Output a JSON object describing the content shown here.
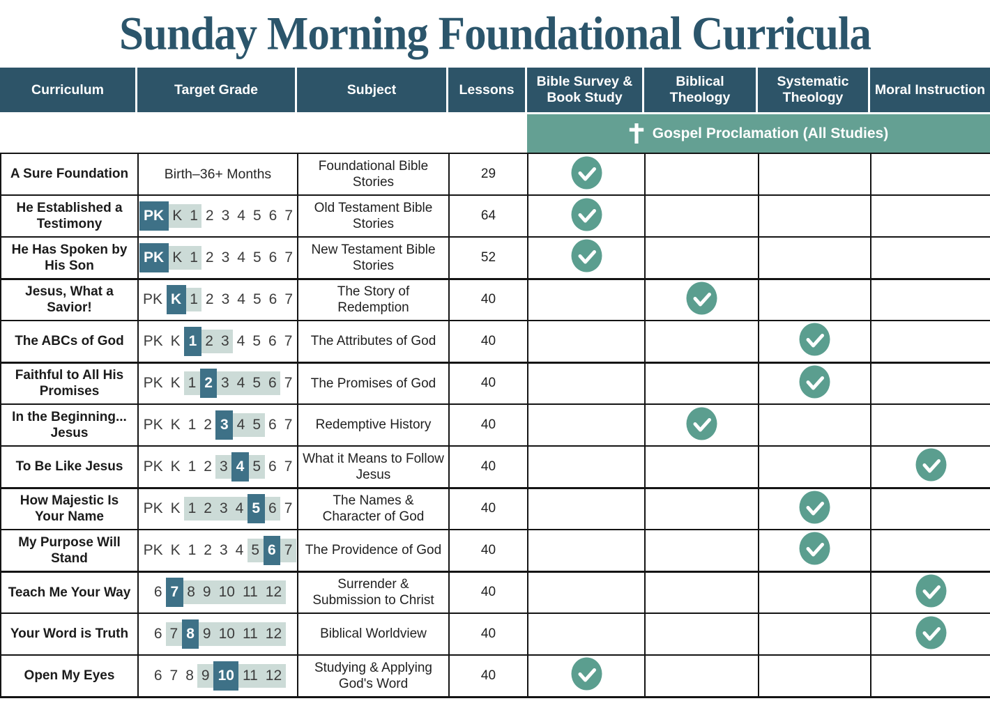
{
  "title": "Sunday Morning Foundational Curricula",
  "colors": {
    "header_blue": "#2d5468",
    "grade_highlight_blue": "#3e7187",
    "grade_range_band": "#ccdbd7",
    "banner_teal": "#64a093",
    "check_teal": "#5b9e8f",
    "title_color": "#2b556b"
  },
  "header": {
    "columns": [
      "Curriculum",
      "Target Grade",
      "Subject",
      "Lessons",
      "Bible Survey & Book Study",
      "Biblical Theology",
      "Systematic Theology",
      "Moral Instruction"
    ]
  },
  "banner": {
    "icon": "cross-icon",
    "label": "Gospel Proclamation (All Studies)"
  },
  "check_columns": [
    "bible_survey",
    "biblical_theology",
    "systematic_theology",
    "moral_instruction"
  ],
  "rows": [
    {
      "curriculum": "A Sure Foundation",
      "grade": {
        "text": "Birth–36+ Months"
      },
      "subject": "Foundational Bible Stories",
      "lessons": "29",
      "check": "bible_survey"
    },
    {
      "curriculum": "He Established a Testimony",
      "grade": {
        "tokens": [
          [
            "PK",
            "main"
          ],
          [
            "K",
            "range"
          ],
          [
            "1",
            "range"
          ],
          [
            "2",
            "plain"
          ],
          [
            "3",
            "plain"
          ],
          [
            "4",
            "plain"
          ],
          [
            "5",
            "plain"
          ],
          [
            "6",
            "plain"
          ],
          [
            "7",
            "plain"
          ]
        ]
      },
      "subject": "Old Testament Bible Stories",
      "lessons": "64",
      "check": "bible_survey"
    },
    {
      "curriculum": "He Has Spoken by His Son",
      "grade": {
        "tokens": [
          [
            "PK",
            "main"
          ],
          [
            "K",
            "range"
          ],
          [
            "1",
            "range"
          ],
          [
            "2",
            "plain"
          ],
          [
            "3",
            "plain"
          ],
          [
            "4",
            "plain"
          ],
          [
            "5",
            "plain"
          ],
          [
            "6",
            "plain"
          ],
          [
            "7",
            "plain"
          ]
        ]
      },
      "subject": "New Testament Bible Stories",
      "lessons": "52",
      "check": "bible_survey"
    },
    {
      "curriculum": "Jesus, What a Savior!",
      "grade": {
        "tokens": [
          [
            "PK",
            "plain"
          ],
          [
            "K",
            "main"
          ],
          [
            "1",
            "range"
          ],
          [
            "2",
            "plain"
          ],
          [
            "3",
            "plain"
          ],
          [
            "4",
            "plain"
          ],
          [
            "5",
            "plain"
          ],
          [
            "6",
            "plain"
          ],
          [
            "7",
            "plain"
          ]
        ]
      },
      "subject": "The Story of Redemption",
      "lessons": "40",
      "check": "biblical_theology"
    },
    {
      "curriculum": "The ABCs of God",
      "grade": {
        "tokens": [
          [
            "PK",
            "plain"
          ],
          [
            "K",
            "plain"
          ],
          [
            "1",
            "main"
          ],
          [
            "2",
            "range"
          ],
          [
            "3",
            "range"
          ],
          [
            "4",
            "plain"
          ],
          [
            "5",
            "plain"
          ],
          [
            "6",
            "plain"
          ],
          [
            "7",
            "plain"
          ]
        ]
      },
      "subject": "The Attributes of God",
      "lessons": "40",
      "check": "systematic_theology"
    },
    {
      "curriculum": "Faithful to All His Promises",
      "grade": {
        "tokens": [
          [
            "PK",
            "plain"
          ],
          [
            "K",
            "plain"
          ],
          [
            "1",
            "range"
          ],
          [
            "2",
            "main"
          ],
          [
            "3",
            "range"
          ],
          [
            "4",
            "range"
          ],
          [
            "5",
            "range"
          ],
          [
            "6",
            "range"
          ],
          [
            "7",
            "plain"
          ]
        ]
      },
      "subject": "The Promises of God",
      "lessons": "40",
      "check": "systematic_theology"
    },
    {
      "curriculum": "In the Beginning... Jesus",
      "grade": {
        "tokens": [
          [
            "PK",
            "plain"
          ],
          [
            "K",
            "plain"
          ],
          [
            "1",
            "plain"
          ],
          [
            "2",
            "plain"
          ],
          [
            "3",
            "main"
          ],
          [
            "4",
            "range"
          ],
          [
            "5",
            "range"
          ],
          [
            "6",
            "plain"
          ],
          [
            "7",
            "plain"
          ]
        ]
      },
      "subject": "Redemptive History",
      "lessons": "40",
      "check": "biblical_theology"
    },
    {
      "curriculum": "To Be Like Jesus",
      "grade": {
        "tokens": [
          [
            "PK",
            "plain"
          ],
          [
            "K",
            "plain"
          ],
          [
            "1",
            "plain"
          ],
          [
            "2",
            "plain"
          ],
          [
            "3",
            "range"
          ],
          [
            "4",
            "main"
          ],
          [
            "5",
            "range"
          ],
          [
            "6",
            "plain"
          ],
          [
            "7",
            "plain"
          ]
        ]
      },
      "subject": "What it Means to Follow Jesus",
      "lessons": "40",
      "check": "moral_instruction"
    },
    {
      "curriculum": "How Majestic Is Your Name",
      "grade": {
        "tokens": [
          [
            "PK",
            "plain"
          ],
          [
            "K",
            "plain"
          ],
          [
            "1",
            "range"
          ],
          [
            "2",
            "range"
          ],
          [
            "3",
            "range"
          ],
          [
            "4",
            "range"
          ],
          [
            "5",
            "main"
          ],
          [
            "6",
            "range"
          ],
          [
            "7",
            "plain"
          ]
        ]
      },
      "subject": "The Names & Character of God",
      "lessons": "40",
      "check": "systematic_theology"
    },
    {
      "curriculum": "My Purpose Will Stand",
      "grade": {
        "tokens": [
          [
            "PK",
            "plain"
          ],
          [
            "K",
            "plain"
          ],
          [
            "1",
            "plain"
          ],
          [
            "2",
            "plain"
          ],
          [
            "3",
            "plain"
          ],
          [
            "4",
            "plain"
          ],
          [
            "5",
            "range"
          ],
          [
            "6",
            "main"
          ],
          [
            "7",
            "range"
          ]
        ]
      },
      "subject": "The Providence of God",
      "lessons": "40",
      "check": "systematic_theology"
    },
    {
      "curriculum": "Teach Me Your Way",
      "grade": {
        "tokens": [
          [
            "6",
            "plain"
          ],
          [
            "7",
            "main"
          ],
          [
            "8",
            "range"
          ],
          [
            "9",
            "range"
          ],
          [
            "10",
            "range"
          ],
          [
            "11",
            "range"
          ],
          [
            "12",
            "range"
          ]
        ]
      },
      "subject": "Surrender & Submission to Christ",
      "lessons": "40",
      "check": "moral_instruction"
    },
    {
      "curriculum": "Your Word is Truth",
      "grade": {
        "tokens": [
          [
            "6",
            "plain"
          ],
          [
            "7",
            "range"
          ],
          [
            "8",
            "main"
          ],
          [
            "9",
            "range"
          ],
          [
            "10",
            "range"
          ],
          [
            "11",
            "range"
          ],
          [
            "12",
            "range"
          ]
        ]
      },
      "subject": "Biblical Worldview",
      "lessons": "40",
      "check": "moral_instruction"
    },
    {
      "curriculum": "Open My Eyes",
      "grade": {
        "tokens": [
          [
            "6",
            "plain"
          ],
          [
            "7",
            "plain"
          ],
          [
            "8",
            "plain"
          ],
          [
            "9",
            "range"
          ],
          [
            "10",
            "main"
          ],
          [
            "11",
            "range"
          ],
          [
            "12",
            "range"
          ]
        ]
      },
      "subject": "Studying & Applying God's Word",
      "lessons": "40",
      "check": "bible_survey"
    }
  ]
}
